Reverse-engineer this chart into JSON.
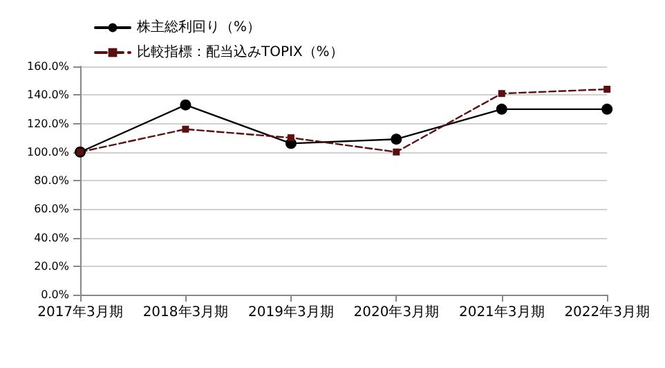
{
  "chart_data": {
    "type": "line",
    "categories": [
      "2017年3月期",
      "2018年3月期",
      "2019年3月期",
      "2020年3月期",
      "2021年3月期",
      "2022年3月期"
    ],
    "series": [
      {
        "name": "株主総利回り（%）",
        "color": "#000000",
        "marker": "circle",
        "line_style": "solid",
        "values": [
          100,
          133,
          106,
          109,
          130,
          130
        ]
      },
      {
        "name": "比較指標：配当込みTOPIX（%）",
        "color": "#5a1010",
        "marker": "square",
        "line_style": "dashed",
        "values": [
          100,
          116,
          110,
          100,
          141,
          144
        ]
      }
    ],
    "ylim": [
      0,
      160
    ],
    "yticks": [
      {
        "value": 0,
        "label": "0.0%"
      },
      {
        "value": 20,
        "label": "20.0%"
      },
      {
        "value": 40,
        "label": "40.0%"
      },
      {
        "value": 60,
        "label": "60.0%"
      },
      {
        "value": 80,
        "label": "80.0%"
      },
      {
        "value": 100,
        "label": "100.0%"
      },
      {
        "value": 120,
        "label": "120.0%"
      },
      {
        "value": 140,
        "label": "140.0%"
      },
      {
        "value": 160,
        "label": "160.0%"
      }
    ],
    "grid": "y",
    "legend": "top left"
  }
}
